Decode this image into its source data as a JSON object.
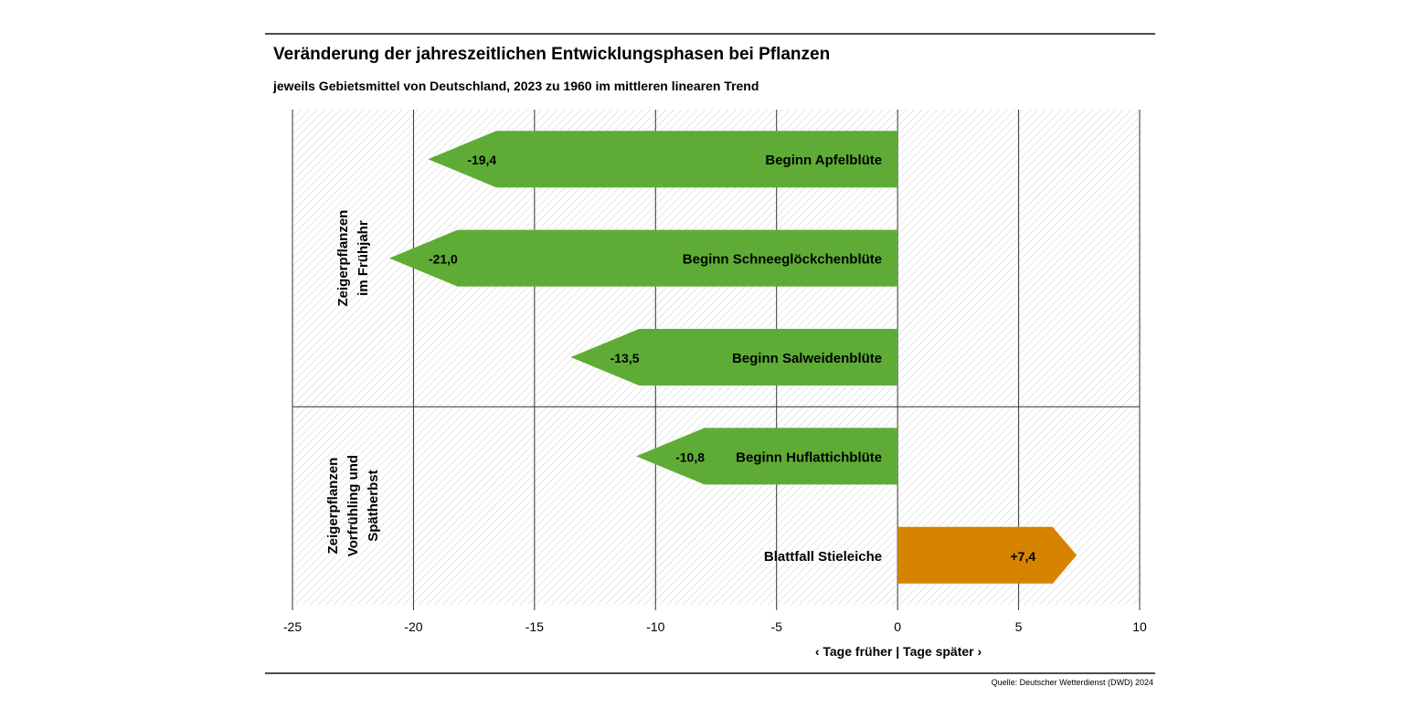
{
  "chart_data": {
    "type": "bar",
    "orientation": "horizontal",
    "title": "Veränderung der jahreszeitlichen Entwicklungsphasen bei Pflanzen",
    "subtitle": "jeweils Gebietsmittel von Deutschland, 2023 zu 1960 im mittleren linearen Trend",
    "xlabel": "‹ Tage früher | Tage später ›",
    "xlim": [
      -25,
      10
    ],
    "xticks": [
      "-25",
      "-20",
      "-15",
      "-10",
      "-5",
      "0",
      "5",
      "10"
    ],
    "categories": [
      "Beginn Apfelblüte",
      "Beginn Schneeglöckchenblüte",
      "Beginn Salweidenblüte",
      "Beginn Huflattichblüte",
      "Blattfall Stieleiche"
    ],
    "values": [
      -19.4,
      -21.0,
      -13.5,
      -10.8,
      7.4
    ],
    "value_labels": [
      "-19,4",
      "-21,0",
      "-13,5",
      "-10,8",
      "+7,4"
    ],
    "groups": [
      {
        "label_lines": [
          "Zeigerpflanzen",
          "im Frühjahr"
        ],
        "items": [
          0,
          1,
          2
        ]
      },
      {
        "label_lines": [
          "Zeigerpflanzen",
          "Vorfrühling und",
          "Spätherbst"
        ],
        "items": [
          3,
          4
        ]
      }
    ],
    "colors": {
      "earlier": "#5eac35",
      "later": "#d68400",
      "grid": "#333333",
      "hatch": "#d4d4d4"
    },
    "grid": true,
    "source": "Quelle: Deutscher Wetterdienst (DWD) 2024"
  }
}
